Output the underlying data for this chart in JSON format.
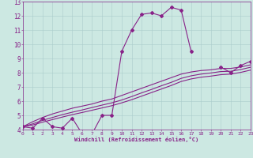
{
  "xlabel": "Windchill (Refroidissement éolien,°C)",
  "bg_color": "#cce8e2",
  "grid_color": "#aacccc",
  "line_color": "#882288",
  "x_hours": [
    0,
    1,
    2,
    3,
    4,
    5,
    6,
    7,
    8,
    9,
    10,
    11,
    12,
    13,
    14,
    15,
    16,
    17,
    18,
    19,
    20,
    21,
    22,
    23
  ],
  "series_main": [
    4.2,
    4.1,
    4.8,
    4.2,
    4.1,
    4.8,
    3.7,
    3.7,
    5.0,
    5.0,
    9.5,
    11.0,
    12.1,
    12.2,
    12.0,
    12.6,
    12.4,
    9.5,
    null,
    null,
    8.4,
    8.0,
    8.5,
    8.8
  ],
  "series_trend1": [
    4.2,
    4.55,
    4.85,
    5.1,
    5.3,
    5.5,
    5.65,
    5.8,
    6.0,
    6.15,
    6.4,
    6.65,
    6.9,
    7.15,
    7.4,
    7.65,
    7.9,
    8.05,
    8.15,
    8.2,
    8.3,
    8.3,
    8.4,
    8.55
  ],
  "series_trend2": [
    4.2,
    4.4,
    4.65,
    4.85,
    5.05,
    5.22,
    5.38,
    5.55,
    5.72,
    5.88,
    6.08,
    6.32,
    6.58,
    6.82,
    7.08,
    7.32,
    7.6,
    7.78,
    7.9,
    7.98,
    8.08,
    8.1,
    8.22,
    8.38
  ],
  "series_trend3": [
    4.2,
    4.32,
    4.52,
    4.7,
    4.88,
    5.05,
    5.2,
    5.36,
    5.52,
    5.68,
    5.88,
    6.1,
    6.35,
    6.6,
    6.85,
    7.1,
    7.38,
    7.56,
    7.68,
    7.76,
    7.86,
    7.9,
    8.02,
    8.18
  ],
  "ylim": [
    4,
    13
  ],
  "xlim": [
    0,
    23
  ]
}
